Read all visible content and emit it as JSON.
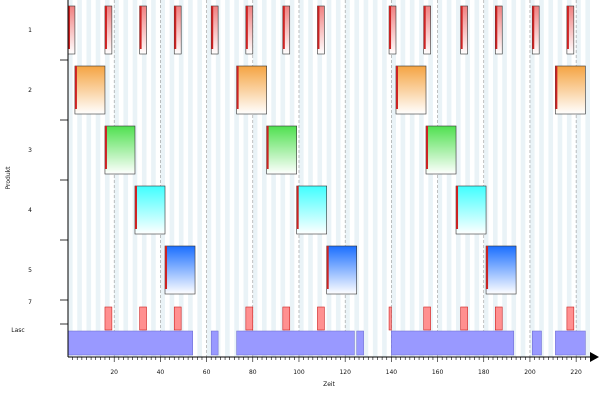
{
  "chart_data": {
    "type": "gantt",
    "title": "",
    "xlabel": "Zeit",
    "ylabel": "Produkt",
    "xlim": [
      0,
      226
    ],
    "x_ticks": [
      20,
      40,
      60,
      80,
      100,
      120,
      140,
      160,
      180,
      200,
      220
    ],
    "minor_tick_step": 2,
    "rows": [
      {
        "label": "1",
        "product": 1
      },
      {
        "label": "2",
        "product": 2
      },
      {
        "label": "3",
        "product": 3
      },
      {
        "label": "4",
        "product": 4
      },
      {
        "label": "5",
        "product": 5
      },
      {
        "label": "7",
        "product": 7
      },
      {
        "label": "Lasc",
        "product": null
      }
    ],
    "colors": {
      "1": [
        "#f08080",
        "#ffffff"
      ],
      "2": [
        "#f5a442",
        "#ffffff"
      ],
      "3": [
        "#4fe04f",
        "#ffffff"
      ],
      "4": [
        "#40ffff",
        "#ffffff"
      ],
      "5": [
        "#1a6fff",
        "#ffffff"
      ],
      "7": [
        "#ff9090",
        "#ff9090"
      ],
      "lasc": "#9999ff",
      "edge": "#cc2222",
      "grid": "#999999",
      "stripe": "#eaf3f7"
    },
    "tasks": [
      {
        "row": 0,
        "start": 0,
        "end": 3
      },
      {
        "row": 0,
        "start": 16,
        "end": 19
      },
      {
        "row": 0,
        "start": 31,
        "end": 34
      },
      {
        "row": 0,
        "start": 46,
        "end": 49
      },
      {
        "row": 0,
        "start": 62,
        "end": 65
      },
      {
        "row": 0,
        "start": 77,
        "end": 80
      },
      {
        "row": 0,
        "start": 93,
        "end": 96
      },
      {
        "row": 0,
        "start": 108,
        "end": 111
      },
      {
        "row": 0,
        "start": 139,
        "end": 142
      },
      {
        "row": 0,
        "start": 154,
        "end": 157
      },
      {
        "row": 0,
        "start": 170,
        "end": 173
      },
      {
        "row": 0,
        "start": 185,
        "end": 188
      },
      {
        "row": 0,
        "start": 201,
        "end": 204
      },
      {
        "row": 0,
        "start": 216,
        "end": 219
      },
      {
        "row": 1,
        "start": 3,
        "end": 16
      },
      {
        "row": 1,
        "start": 73,
        "end": 86
      },
      {
        "row": 1,
        "start": 142,
        "end": 155
      },
      {
        "row": 1,
        "start": 211,
        "end": 224
      },
      {
        "row": 2,
        "start": 16,
        "end": 29
      },
      {
        "row": 2,
        "start": 86,
        "end": 99
      },
      {
        "row": 2,
        "start": 155,
        "end": 168
      },
      {
        "row": 3,
        "start": 29,
        "end": 42
      },
      {
        "row": 3,
        "start": 99,
        "end": 112
      },
      {
        "row": 3,
        "start": 168,
        "end": 181
      },
      {
        "row": 4,
        "start": 42,
        "end": 55
      },
      {
        "row": 4,
        "start": 112,
        "end": 125
      },
      {
        "row": 4,
        "start": 181,
        "end": 194
      },
      {
        "row": 5,
        "start": 16,
        "end": 19
      },
      {
        "row": 5,
        "start": 31,
        "end": 34
      },
      {
        "row": 5,
        "start": 46,
        "end": 49
      },
      {
        "row": 5,
        "start": 77,
        "end": 80
      },
      {
        "row": 5,
        "start": 93,
        "end": 96
      },
      {
        "row": 5,
        "start": 108,
        "end": 111
      },
      {
        "row": 5,
        "start": 139,
        "end": 140
      },
      {
        "row": 5,
        "start": 154,
        "end": 157
      },
      {
        "row": 5,
        "start": 170,
        "end": 173
      },
      {
        "row": 5,
        "start": 185,
        "end": 188
      },
      {
        "row": 5,
        "start": 216,
        "end": 219
      }
    ],
    "lasc_segments": [
      {
        "start": 0,
        "end": 54
      },
      {
        "start": 62,
        "end": 65
      },
      {
        "start": 73,
        "end": 124
      },
      {
        "start": 125,
        "end": 128
      },
      {
        "start": 140,
        "end": 193
      },
      {
        "start": 201,
        "end": 205
      },
      {
        "start": 211,
        "end": 224
      }
    ]
  }
}
